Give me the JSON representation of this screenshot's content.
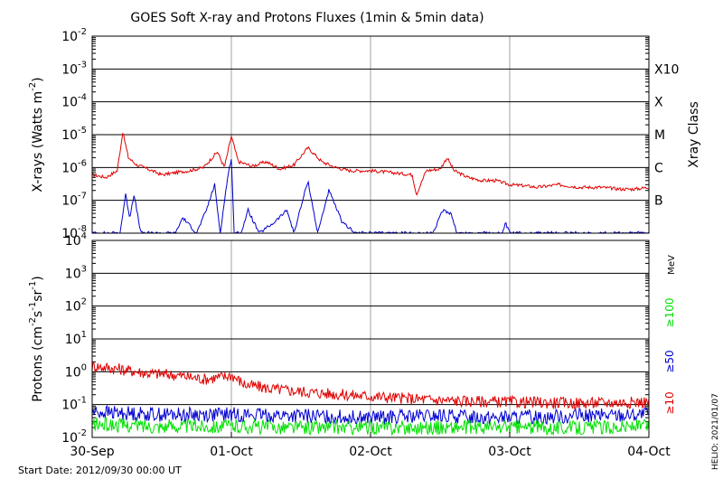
{
  "title": "GOES Soft X-ray and Protons Fluxes   (1min & 5min data)",
  "start_date": "Start Date: 2012/09/30 00:00 UT",
  "credit": "HELIO: 2021/01/07",
  "colors": {
    "red": "#e00000",
    "blue": "#0000d0",
    "green": "#00e000",
    "black": "#000000",
    "grid": "#a0a0a0"
  },
  "chart_data": [
    {
      "type": "line",
      "title": "",
      "ylabel": "X-rays (Watts m^-2)",
      "ylabel_parts": [
        "X-rays (Watts m",
        "-2",
        ")"
      ],
      "yscale": "log",
      "ylim": [
        1e-08,
        0.01
      ],
      "ytick_exponents": [
        -8,
        -7,
        -6,
        -5,
        -4,
        -3,
        -2
      ],
      "ytick_base": "10",
      "xlim": [
        "2012-09-30",
        "2012-10-04"
      ],
      "xticks": [
        "30-Sep",
        "01-Oct",
        "02-Oct",
        "03-Oct",
        "04-Oct"
      ],
      "right_axis": {
        "label": "Xray Class",
        "classes": [
          {
            "label": "X10",
            "value": 0.001
          },
          {
            "label": "X",
            "value": 0.0001
          },
          {
            "label": "M",
            "value": 1e-05
          },
          {
            "label": "C",
            "value": 1e-06
          },
          {
            "label": "B",
            "value": 1e-07
          }
        ]
      },
      "series": [
        {
          "color": "#e00000",
          "points": [
            [
              0.0,
              6e-07
            ],
            [
              0.1,
              5e-07
            ],
            [
              0.18,
              8e-07
            ],
            [
              0.22,
              1.2e-05
            ],
            [
              0.26,
              2e-06
            ],
            [
              0.32,
              1.2e-06
            ],
            [
              0.4,
              9e-07
            ],
            [
              0.5,
              6e-07
            ],
            [
              0.6,
              7e-07
            ],
            [
              0.7,
              8e-07
            ],
            [
              0.8,
              1e-06
            ],
            [
              0.9,
              3e-06
            ],
            [
              0.95,
              1e-06
            ],
            [
              1.0,
              9e-06
            ],
            [
              1.05,
              1.5e-06
            ],
            [
              1.15,
              1.1e-06
            ],
            [
              1.25,
              1.5e-06
            ],
            [
              1.35,
              9e-07
            ],
            [
              1.45,
              1.2e-06
            ],
            [
              1.55,
              4e-06
            ],
            [
              1.65,
              1.5e-06
            ],
            [
              1.75,
              1e-06
            ],
            [
              1.85,
              8e-07
            ],
            [
              2.0,
              8e-07
            ],
            [
              2.15,
              7e-07
            ],
            [
              2.3,
              6e-07
            ],
            [
              2.33,
              1.5e-07
            ],
            [
              2.4,
              8e-07
            ],
            [
              2.5,
              9e-07
            ],
            [
              2.55,
              2e-06
            ],
            [
              2.6,
              8e-07
            ],
            [
              2.7,
              5e-07
            ],
            [
              2.8,
              4e-07
            ],
            [
              2.9,
              4e-07
            ],
            [
              3.0,
              3e-07
            ],
            [
              3.1,
              2.8e-07
            ],
            [
              3.2,
              2.5e-07
            ],
            [
              3.35,
              3e-07
            ],
            [
              3.5,
              2.5e-07
            ],
            [
              3.65,
              2.5e-07
            ],
            [
              3.8,
              2.2e-07
            ],
            [
              3.9,
              2.2e-07
            ],
            [
              4.0,
              2.5e-07
            ]
          ]
        },
        {
          "color": "#0000d0",
          "points": [
            [
              0.0,
              1e-08
            ],
            [
              0.1,
              1e-08
            ],
            [
              0.2,
              1e-08
            ],
            [
              0.24,
              1.5e-07
            ],
            [
              0.27,
              3e-08
            ],
            [
              0.3,
              1.5e-07
            ],
            [
              0.35,
              1e-08
            ],
            [
              0.45,
              1e-08
            ],
            [
              0.6,
              1e-08
            ],
            [
              0.65,
              3e-08
            ],
            [
              0.75,
              1e-08
            ],
            [
              0.82,
              5e-08
            ],
            [
              0.88,
              3e-07
            ],
            [
              0.92,
              1e-08
            ],
            [
              0.97,
              4e-07
            ],
            [
              1.0,
              2e-06
            ],
            [
              1.02,
              1e-08
            ],
            [
              1.07,
              1e-08
            ],
            [
              1.12,
              5e-08
            ],
            [
              1.2,
              1e-08
            ],
            [
              1.3,
              2e-08
            ],
            [
              1.4,
              5e-08
            ],
            [
              1.45,
              1e-08
            ],
            [
              1.55,
              4e-07
            ],
            [
              1.62,
              1e-08
            ],
            [
              1.7,
              2e-07
            ],
            [
              1.8,
              2e-08
            ],
            [
              1.9,
              1e-08
            ],
            [
              2.2,
              1e-08
            ],
            [
              2.45,
              1e-08
            ],
            [
              2.52,
              5e-08
            ],
            [
              2.58,
              4e-08
            ],
            [
              2.62,
              1e-08
            ],
            [
              2.95,
              1e-08
            ],
            [
              2.97,
              2e-08
            ],
            [
              3.0,
              1e-08
            ],
            [
              4.0,
              1e-08
            ]
          ]
        }
      ]
    },
    {
      "type": "line",
      "title": "",
      "ylabel": "Protons (cm^-2 s^-1 sr^-1)",
      "ylabel_parts": [
        "Protons (cm",
        "-2",
        "s",
        "-1",
        "sr",
        "-1",
        ")"
      ],
      "yscale": "log",
      "ylim": [
        0.01,
        10000.0
      ],
      "ytick_exponents": [
        -2,
        -1,
        0,
        1,
        2,
        3,
        4
      ],
      "ytick_base": "10",
      "reference_line": {
        "value": 10,
        "style": "dashed"
      },
      "xlim": [
        "2012-09-30",
        "2012-10-04"
      ],
      "xticks": [
        "30-Sep",
        "01-Oct",
        "02-Oct",
        "03-Oct",
        "04-Oct"
      ],
      "right_axis": {
        "unit": "MeV",
        "labels": [
          {
            "text": "≥100",
            "color": "#00e000"
          },
          {
            "text": "≥50",
            "color": "#0000d0"
          },
          {
            "text": "≥10",
            "color": "#e00000"
          }
        ]
      },
      "series": [
        {
          "name": "≥10",
          "color": "#e00000",
          "points": [
            [
              0.0,
              1.5
            ],
            [
              0.2,
              1.2
            ],
            [
              0.4,
              0.9
            ],
            [
              0.6,
              0.8
            ],
            [
              0.8,
              0.6
            ],
            [
              0.95,
              0.7
            ],
            [
              1.0,
              0.8
            ],
            [
              1.1,
              0.4
            ],
            [
              1.3,
              0.3
            ],
            [
              1.5,
              0.25
            ],
            [
              1.8,
              0.2
            ],
            [
              2.0,
              0.18
            ],
            [
              2.3,
              0.15
            ],
            [
              2.6,
              0.13
            ],
            [
              3.0,
              0.12
            ],
            [
              3.5,
              0.11
            ],
            [
              4.0,
              0.12
            ]
          ]
        },
        {
          "name": "≥50",
          "color": "#0000d0",
          "points": [
            [
              0.0,
              0.06
            ],
            [
              0.5,
              0.05
            ],
            [
              1.0,
              0.05
            ],
            [
              1.5,
              0.045
            ],
            [
              2.0,
              0.04
            ],
            [
              2.5,
              0.045
            ],
            [
              3.0,
              0.04
            ],
            [
              3.5,
              0.045
            ],
            [
              4.0,
              0.05
            ]
          ]
        },
        {
          "name": "≥100",
          "color": "#00e000",
          "points": [
            [
              0.0,
              0.025
            ],
            [
              0.5,
              0.022
            ],
            [
              1.0,
              0.022
            ],
            [
              1.5,
              0.02
            ],
            [
              2.0,
              0.02
            ],
            [
              2.5,
              0.02
            ],
            [
              3.0,
              0.02
            ],
            [
              3.5,
              0.02
            ],
            [
              4.0,
              0.022
            ]
          ]
        }
      ]
    }
  ]
}
